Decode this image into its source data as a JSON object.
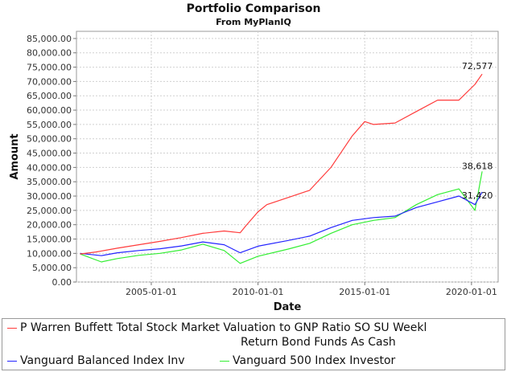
{
  "chart_data": {
    "type": "line",
    "title": "Portfolio Comparison",
    "subtitle": "From MyPlanIQ",
    "xlabel": "Date",
    "ylabel": "Amount",
    "xlim": [
      "2001-07-01",
      "2021-04-01"
    ],
    "ylim": [
      0,
      87500
    ],
    "x_ticks": [
      "2005-01-01",
      "2010-01-01",
      "2015-01-01",
      "2020-01-01"
    ],
    "y_ticks": [
      "0.00",
      "5,000.00",
      "10,000.00",
      "15,000.00",
      "20,000.00",
      "25,000.00",
      "30,000.00",
      "35,000.00",
      "40,000.00",
      "45,000.00",
      "50,000.00",
      "55,000.00",
      "60,000.00",
      "65,000.00",
      "70,000.00",
      "75,000.00",
      "80,000.00",
      "85,000.00"
    ],
    "grid": true,
    "legend_position": "bottom",
    "series": [
      {
        "name": "P Warren Buffett Total Stock Market Valuation to GNP Ratio SO SU Weekly Return Bond Funds As Cash",
        "legend_line1": "P Warren Buffett Total Stock Market Valuation to GNP Ratio SO SU Weekl",
        "legend_line2": "Return Bond Funds As Cash",
        "color": "#ff3b3b",
        "end_label": "72,577",
        "points": [
          [
            "2001-09-01",
            9800
          ],
          [
            "2002-06-01",
            10500
          ],
          [
            "2003-06-01",
            11800
          ],
          [
            "2004-06-01",
            13000
          ],
          [
            "2005-06-01",
            14200
          ],
          [
            "2006-06-01",
            15500
          ],
          [
            "2007-06-01",
            17000
          ],
          [
            "2008-06-01",
            17800
          ],
          [
            "2009-03-01",
            17200
          ],
          [
            "2009-06-01",
            19500
          ],
          [
            "2010-01-01",
            24500
          ],
          [
            "2010-06-01",
            27000
          ],
          [
            "2011-06-01",
            29500
          ],
          [
            "2012-06-01",
            32000
          ],
          [
            "2013-06-01",
            40000
          ],
          [
            "2014-06-01",
            51000
          ],
          [
            "2015-01-01",
            56000
          ],
          [
            "2015-06-01",
            55000
          ],
          [
            "2016-06-01",
            55500
          ],
          [
            "2017-06-01",
            59500
          ],
          [
            "2018-06-01",
            63500
          ],
          [
            "2019-06-01",
            63500
          ],
          [
            "2020-03-01",
            69000
          ],
          [
            "2020-07-01",
            72577
          ]
        ]
      },
      {
        "name": "Vanguard Balanced Index Inv",
        "color": "#2424ff",
        "end_label": "31,420",
        "points": [
          [
            "2001-09-01",
            10000
          ],
          [
            "2002-09-01",
            9200
          ],
          [
            "2003-06-01",
            10200
          ],
          [
            "2004-06-01",
            11000
          ],
          [
            "2005-06-01",
            11600
          ],
          [
            "2006-06-01",
            12600
          ],
          [
            "2007-06-01",
            14000
          ],
          [
            "2008-06-01",
            13000
          ],
          [
            "2009-03-01",
            10200
          ],
          [
            "2010-01-01",
            12500
          ],
          [
            "2011-06-01",
            14500
          ],
          [
            "2012-06-01",
            16000
          ],
          [
            "2013-06-01",
            19000
          ],
          [
            "2014-06-01",
            21500
          ],
          [
            "2015-06-01",
            22500
          ],
          [
            "2016-06-01",
            23000
          ],
          [
            "2017-06-01",
            26000
          ],
          [
            "2018-06-01",
            28000
          ],
          [
            "2019-06-01",
            30000
          ],
          [
            "2020-03-01",
            27000
          ],
          [
            "2020-07-01",
            31420
          ]
        ]
      },
      {
        "name": "Vanguard 500 Index Investor",
        "color": "#33ee33",
        "end_label": "38,618",
        "points": [
          [
            "2001-09-01",
            9800
          ],
          [
            "2002-09-01",
            7000
          ],
          [
            "2003-06-01",
            8200
          ],
          [
            "2004-06-01",
            9300
          ],
          [
            "2005-06-01",
            10000
          ],
          [
            "2006-06-01",
            11200
          ],
          [
            "2007-06-01",
            13200
          ],
          [
            "2008-06-01",
            11000
          ],
          [
            "2009-03-01",
            6500
          ],
          [
            "2010-01-01",
            9000
          ],
          [
            "2011-06-01",
            11500
          ],
          [
            "2012-06-01",
            13500
          ],
          [
            "2013-06-01",
            17000
          ],
          [
            "2014-06-01",
            20000
          ],
          [
            "2015-06-01",
            21500
          ],
          [
            "2016-06-01",
            22500
          ],
          [
            "2017-06-01",
            27000
          ],
          [
            "2018-06-01",
            30500
          ],
          [
            "2019-06-01",
            32500
          ],
          [
            "2020-03-01",
            25000
          ],
          [
            "2020-07-01",
            38618
          ]
        ]
      }
    ]
  }
}
